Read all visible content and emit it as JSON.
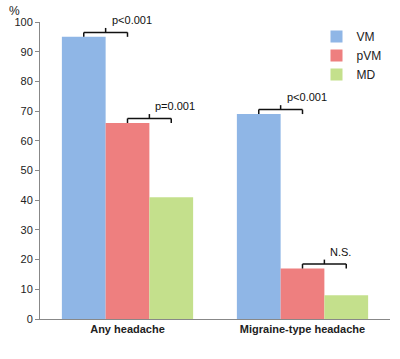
{
  "chart_data": {
    "type": "bar",
    "y_label": "%",
    "categories": [
      "Any headache",
      "Migraine-type headache"
    ],
    "series": [
      {
        "name": "VM",
        "color": "#8fb6e6",
        "values": [
          95,
          69
        ]
      },
      {
        "name": "pVM",
        "color": "#ee7f7f",
        "values": [
          66,
          17
        ]
      },
      {
        "name": "MD",
        "color": "#c4e08c",
        "values": [
          41,
          8
        ]
      }
    ],
    "ylim": [
      0,
      100
    ],
    "yticks": [
      0,
      10,
      20,
      30,
      40,
      50,
      60,
      70,
      80,
      90,
      100
    ],
    "grid": false,
    "legend": "top-right",
    "annotations": [
      {
        "text": "p<0.001",
        "category": "Any headache",
        "between": [
          "VM",
          "pVM"
        ]
      },
      {
        "text": "p=0.001",
        "category": "Any headache",
        "between": [
          "pVM",
          "MD"
        ]
      },
      {
        "text": "p<0.001",
        "category": "Migraine-type headache",
        "between": [
          "VM",
          "pVM"
        ]
      },
      {
        "text": "N.S.",
        "category": "Migraine-type headache",
        "between": [
          "pVM",
          "MD"
        ]
      }
    ]
  }
}
